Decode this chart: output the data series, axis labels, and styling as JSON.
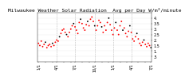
{
  "title": "Milwaukee Weather Solar Radiation  Avg per Day W/m²/minute",
  "ylim": [
    0.0,
    4.5
  ],
  "yticks": [
    0.5,
    1.0,
    1.5,
    2.0,
    2.5,
    3.0,
    3.5,
    4.0
  ],
  "ytick_labels": [
    ".5",
    "1.",
    "1.5",
    "2.",
    "2.5",
    "3.",
    "3.5",
    "4."
  ],
  "background_color": "#ffffff",
  "plot_bg": "#ffffff",
  "grid_color": "#bbbbbb",
  "dot_color_main": "#ff0000",
  "dot_color_alt": "#000000",
  "x_values": [
    0,
    1,
    2,
    3,
    4,
    5,
    6,
    7,
    8,
    9,
    10,
    11,
    12,
    13,
    14,
    15,
    16,
    17,
    18,
    19,
    20,
    21,
    22,
    23,
    24,
    25,
    26,
    27,
    28,
    29,
    30,
    31,
    32,
    33,
    34,
    35,
    36,
    37,
    38,
    39,
    40,
    41,
    42,
    43,
    44,
    45,
    46,
    47,
    48,
    49,
    50,
    51,
    52,
    53,
    54,
    55,
    56,
    57,
    58,
    59,
    60,
    61,
    62,
    63,
    64,
    65,
    66,
    67,
    68,
    69,
    70,
    71,
    72,
    73,
    74,
    75,
    76,
    77,
    78,
    79,
    80
  ],
  "y_values": [
    1.7,
    1.5,
    1.9,
    1.4,
    1.6,
    1.8,
    1.3,
    1.5,
    1.6,
    1.4,
    1.7,
    1.5,
    1.8,
    2.0,
    1.9,
    2.3,
    2.6,
    2.9,
    3.0,
    2.7,
    2.5,
    2.3,
    2.7,
    3.0,
    3.3,
    3.5,
    3.2,
    2.9,
    2.6,
    3.6,
    3.9,
    3.5,
    3.1,
    2.9,
    3.4,
    3.7,
    3.3,
    3.9,
    4.1,
    3.7,
    3.3,
    2.9,
    3.3,
    3.8,
    3.6,
    3.2,
    2.7,
    3.3,
    2.9,
    3.6,
    4.0,
    3.4,
    2.9,
    2.5,
    3.1,
    3.6,
    2.9,
    2.5,
    3.3,
    3.7,
    2.9,
    3.1,
    2.6,
    2.3,
    2.8,
    3.3,
    2.7,
    2.1,
    1.9,
    2.3,
    2.6,
    2.1,
    1.7,
    1.5,
    1.8,
    2.0,
    1.6,
    1.4,
    1.7,
    1.5,
    1.3
  ],
  "alt_indices": [
    5,
    10,
    15,
    20,
    25,
    30,
    35,
    40,
    45,
    50,
    55,
    60,
    65,
    70,
    75,
    80
  ],
  "vline_positions": [
    13,
    26,
    40,
    53,
    66
  ],
  "xtick_positions": [
    0,
    5,
    10,
    13,
    18,
    23,
    26,
    31,
    36,
    40,
    45,
    50,
    53,
    58,
    63,
    66,
    71,
    76,
    80
  ],
  "xtick_labels": [
    "1/1",
    "",
    "",
    "4/1",
    "",
    "",
    "7/1",
    "",
    "",
    "10/1",
    "",
    "",
    "1/1",
    "",
    "",
    "4/1",
    "",
    "",
    "7/1"
  ],
  "title_fontsize": 4.5,
  "tick_fontsize": 3.5,
  "dot_size": 1.8
}
